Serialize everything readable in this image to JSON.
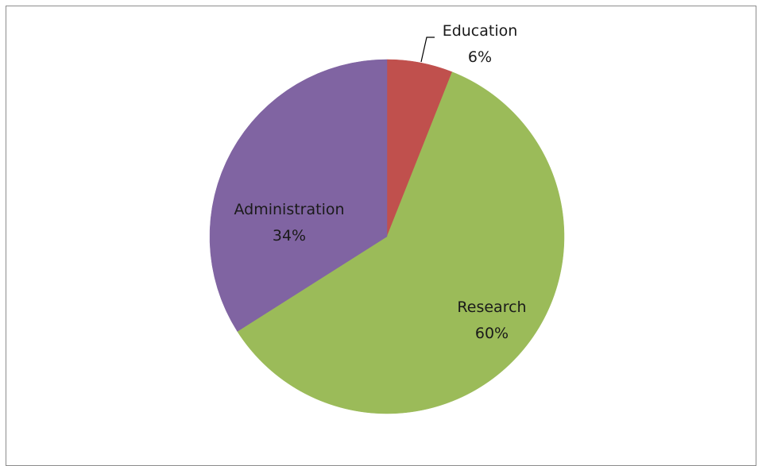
{
  "chart_data": {
    "type": "pie",
    "title": "",
    "legend": "none",
    "start_angle_deg": 0,
    "direction": "clockwise",
    "slices": [
      {
        "label": "Education",
        "value": 6,
        "display": "6%",
        "color": "#c0504d"
      },
      {
        "label": "Research",
        "value": 60,
        "display": "60%",
        "color": "#9bbb59"
      },
      {
        "label": "Administration",
        "value": 34,
        "display": "34%",
        "color": "#8064a2"
      }
    ]
  }
}
